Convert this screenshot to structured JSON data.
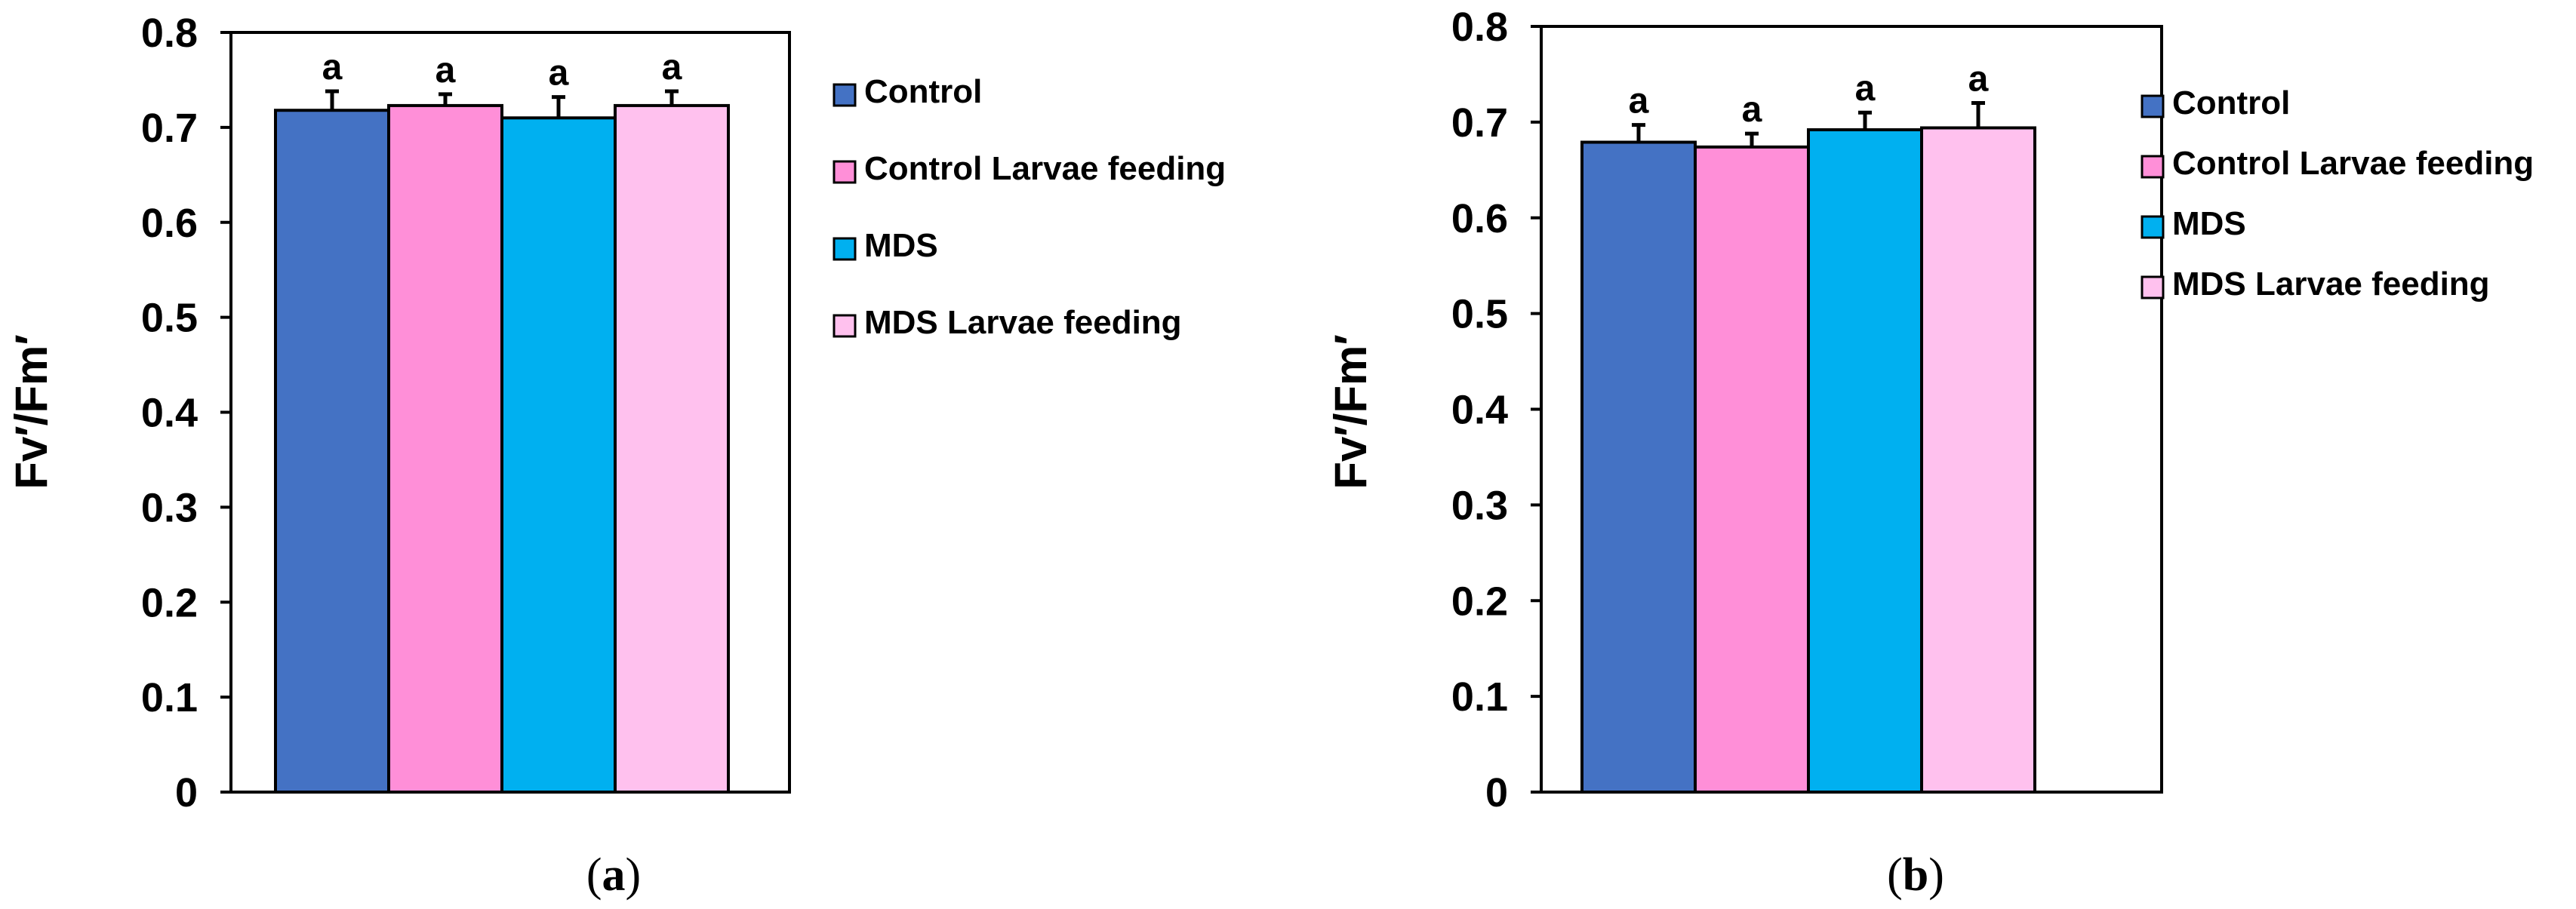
{
  "chart_data": [
    {
      "type": "bar",
      "panel": "a",
      "categories": [
        "Control",
        "Control Larvae feeding",
        "MDS",
        "MDS Larvae feeding"
      ],
      "values": [
        0.718,
        0.723,
        0.71,
        0.723
      ],
      "errors": [
        0.02,
        0.012,
        0.022,
        0.015
      ],
      "significance": [
        "a",
        "a",
        "a",
        "a"
      ],
      "colors": [
        "#4472c4",
        "#ff8fd8",
        "#00b0f0",
        "#ffc1ee"
      ],
      "ylabel": "Fv′/Fm′",
      "ylim": [
        0,
        0.8
      ],
      "yticks": [
        "0",
        "0.1",
        "0.2",
        "0.3",
        "0.4",
        "0.5",
        "0.6",
        "0.7",
        "0.8"
      ],
      "legend": [
        "Control",
        "Control Larvae feeding",
        "MDS",
        "MDS Larvae feeding"
      ],
      "legend_position": "right",
      "grid": false
    },
    {
      "type": "bar",
      "panel": "b",
      "categories": [
        "Control",
        "Control Larvae feeding",
        "MDS",
        "MDS Larvae feeding"
      ],
      "values": [
        0.679,
        0.674,
        0.692,
        0.694
      ],
      "errors": [
        0.018,
        0.014,
        0.018,
        0.026
      ],
      "significance": [
        "a",
        "a",
        "a",
        "a"
      ],
      "colors": [
        "#4472c4",
        "#ff8fd8",
        "#00b0f0",
        "#ffc1ee"
      ],
      "ylabel": "Fv′/Fm′",
      "ylim": [
        0,
        0.8
      ],
      "yticks": [
        "0",
        "0.1",
        "0.2",
        "0.3",
        "0.4",
        "0.5",
        "0.6",
        "0.7",
        "0.8"
      ],
      "legend": [
        "Control",
        "Control Larvae feeding",
        "MDS",
        "MDS Larvae feeding"
      ],
      "legend_position": "right",
      "grid": false
    }
  ],
  "panel_labels": {
    "a_open": "(",
    "a_letter": "a",
    "a_close": ")",
    "b_open": "(",
    "b_letter": "b",
    "b_close": ")"
  }
}
